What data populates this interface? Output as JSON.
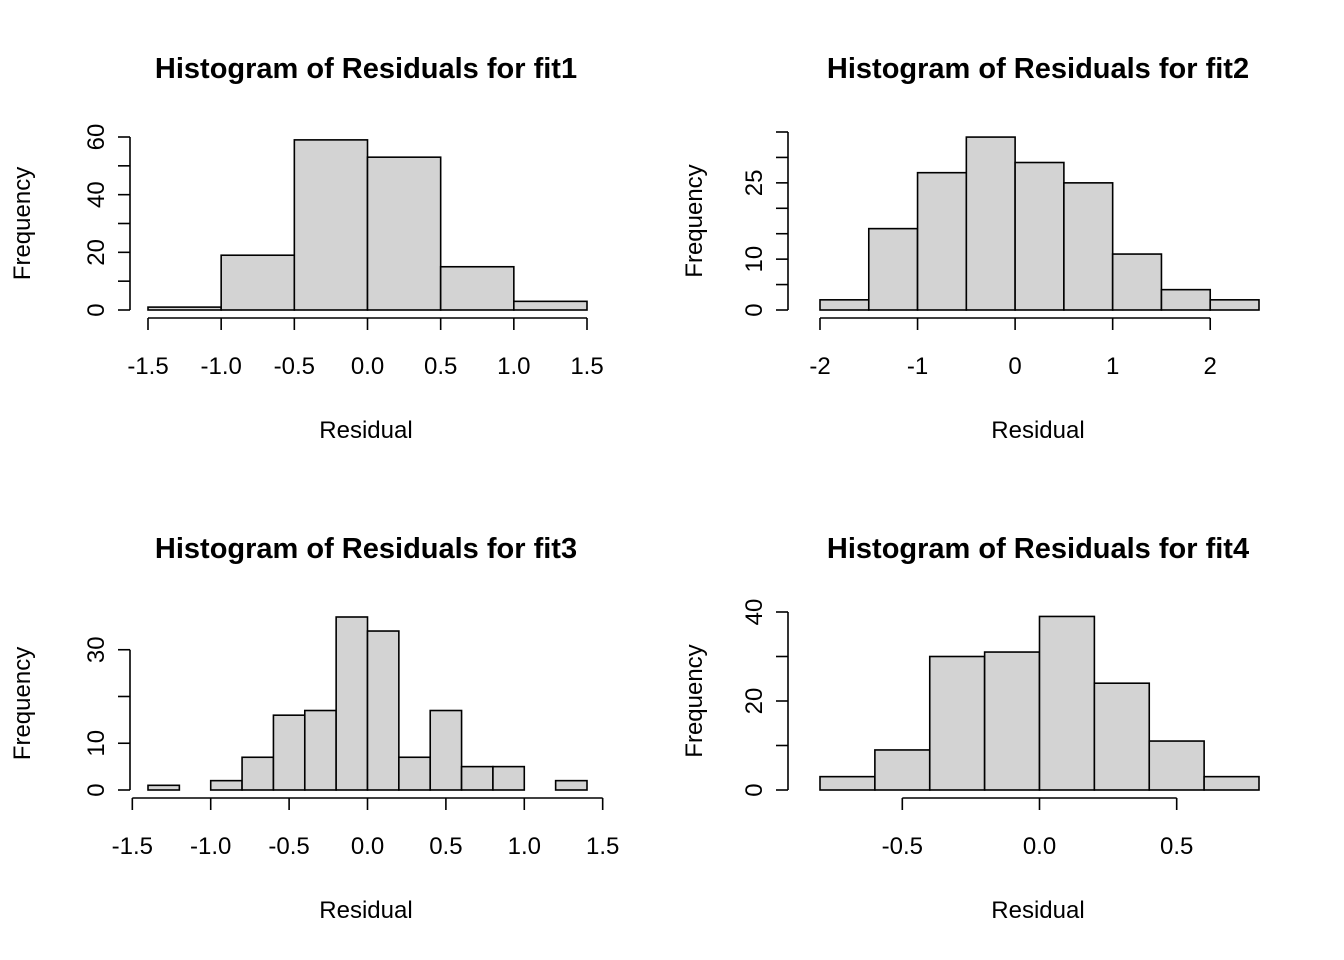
{
  "chart_data": [
    {
      "type": "bar",
      "title": "Histogram of Residuals for fit1",
      "xlabel": "Residual",
      "ylabel": "Frequency",
      "breaks": [
        -1.5,
        -1.0,
        -0.5,
        0.0,
        0.5,
        1.0,
        1.5
      ],
      "counts": [
        1,
        19,
        59,
        53,
        15,
        3
      ],
      "xticks": [
        -1.5,
        -1.0,
        -0.5,
        0.0,
        0.5,
        1.0,
        1.5
      ],
      "xtick_labels": [
        "-1.5",
        "-1.0",
        "-0.5",
        "0.0",
        "0.5",
        "1.0",
        "1.5"
      ],
      "yticks": [
        0,
        10,
        20,
        30,
        40,
        50,
        60
      ],
      "ytick_labels": [
        "0",
        "",
        "20",
        "",
        "40",
        "",
        "60"
      ],
      "ylim": [
        0,
        60
      ]
    },
    {
      "type": "bar",
      "title": "Histogram of Residuals for fit2",
      "xlabel": "Residual",
      "ylabel": "Frequency",
      "breaks": [
        -2.0,
        -1.5,
        -1.0,
        -0.5,
        0.0,
        0.5,
        1.0,
        1.5,
        2.0,
        2.5
      ],
      "counts": [
        2,
        16,
        27,
        34,
        29,
        25,
        11,
        4,
        2
      ],
      "xticks": [
        -2,
        -1,
        0,
        1,
        2
      ],
      "xtick_labels": [
        "-2",
        "-1",
        "0",
        "1",
        "2"
      ],
      "yticks": [
        0,
        5,
        10,
        15,
        20,
        25,
        30,
        35
      ],
      "ytick_labels": [
        "0",
        "",
        "10",
        "",
        "",
        "25",
        "",
        ""
      ],
      "ylim": [
        0,
        35
      ]
    },
    {
      "type": "bar",
      "title": "Histogram of Residuals for fit3",
      "xlabel": "Residual",
      "ylabel": "Frequency",
      "breaks": [
        -1.4,
        -1.2,
        -1.0,
        -0.8,
        -0.6,
        -0.4,
        -0.2,
        0.0,
        0.2,
        0.4,
        0.6,
        0.8,
        1.0,
        1.2,
        1.4
      ],
      "counts": [
        1,
        0,
        2,
        7,
        16,
        17,
        37,
        34,
        7,
        17,
        5,
        5,
        0,
        2
      ],
      "xticks": [
        -1.5,
        -1.0,
        -0.5,
        0.0,
        0.5,
        1.0,
        1.5
      ],
      "xtick_labels": [
        "-1.5",
        "-1.0",
        "-0.5",
        "0.0",
        "0.5",
        "1.0",
        "1.5"
      ],
      "yticks": [
        0,
        10,
        20,
        30
      ],
      "ytick_labels": [
        "0",
        "10",
        "",
        "30"
      ],
      "ylim": [
        0,
        37
      ]
    },
    {
      "type": "bar",
      "title": "Histogram of Residuals for fit4",
      "xlabel": "Residual",
      "ylabel": "Frequency",
      "breaks": [
        -0.8,
        -0.6,
        -0.4,
        -0.2,
        0.0,
        0.2,
        0.4,
        0.6,
        0.8
      ],
      "counts": [
        3,
        9,
        30,
        31,
        39,
        24,
        11,
        3
      ],
      "xticks": [
        -0.5,
        0.0,
        0.5
      ],
      "xtick_labels": [
        "-0.5",
        "0.0",
        "0.5"
      ],
      "yticks": [
        0,
        10,
        20,
        30,
        40
      ],
      "ytick_labels": [
        "0",
        "",
        "20",
        "",
        "40"
      ],
      "ylim": [
        0,
        40
      ]
    }
  ]
}
